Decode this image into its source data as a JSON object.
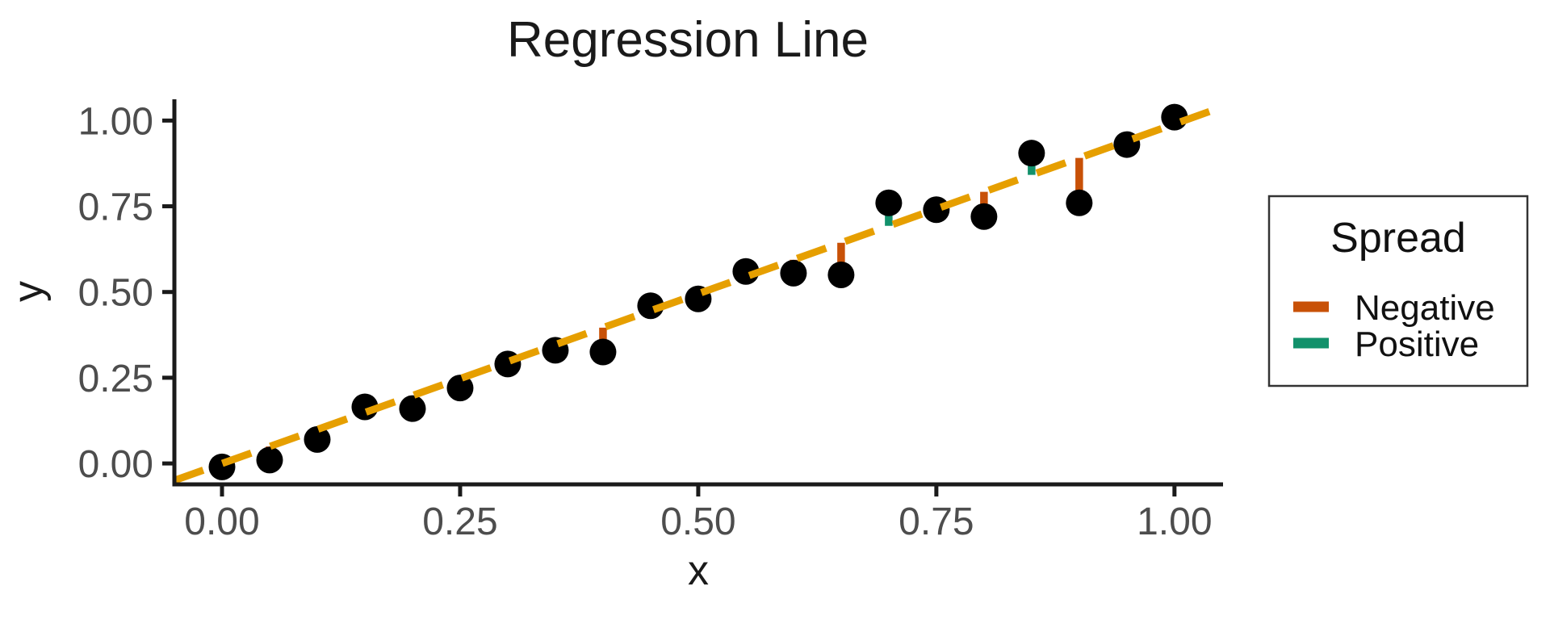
{
  "title": "Regression Line",
  "legend": {
    "title": "Spread",
    "items": [
      {
        "label": "Negative",
        "color": "#C85107"
      },
      {
        "label": "Positive",
        "color": "#12916B"
      }
    ]
  },
  "chart_data": {
    "type": "scatter",
    "title": "Regression Line",
    "xlabel": "x",
    "ylabel": "y",
    "xlim": [
      -0.05,
      1.051
    ],
    "ylim": [
      -0.061,
      1.062
    ],
    "grid": "off",
    "legend_position": "right",
    "x_axis": {
      "ticks": [
        0,
        0.25,
        0.5,
        0.75,
        1.0
      ],
      "labels": [
        "0.00",
        "0.25",
        "0.50",
        "0.75",
        "1.00"
      ]
    },
    "y_axis": {
      "ticks": [
        0,
        0.25,
        0.5,
        0.75,
        1.0
      ],
      "labels": [
        "0.00",
        "0.25",
        "0.50",
        "0.75",
        "1.00"
      ]
    },
    "points": [
      {
        "x": 0.0,
        "y": -0.01
      },
      {
        "x": 0.05,
        "y": 0.01
      },
      {
        "x": 0.1,
        "y": 0.07
      },
      {
        "x": 0.15,
        "y": 0.165
      },
      {
        "x": 0.2,
        "y": 0.16
      },
      {
        "x": 0.25,
        "y": 0.22
      },
      {
        "x": 0.3,
        "y": 0.29
      },
      {
        "x": 0.35,
        "y": 0.33
      },
      {
        "x": 0.4,
        "y": 0.325
      },
      {
        "x": 0.45,
        "y": 0.46
      },
      {
        "x": 0.5,
        "y": 0.48
      },
      {
        "x": 0.55,
        "y": 0.56
      },
      {
        "x": 0.6,
        "y": 0.555
      },
      {
        "x": 0.65,
        "y": 0.55
      },
      {
        "x": 0.7,
        "y": 0.76
      },
      {
        "x": 0.75,
        "y": 0.74
      },
      {
        "x": 0.8,
        "y": 0.72
      },
      {
        "x": 0.85,
        "y": 0.905
      },
      {
        "x": 0.9,
        "y": 0.76
      },
      {
        "x": 0.95,
        "y": 0.93
      },
      {
        "x": 1.0,
        "y": 1.01
      }
    ],
    "regression_line": {
      "slope": 0.99,
      "intercept": 0.0,
      "style": "dashed",
      "x_start": -0.05,
      "x_end": 1.051
    },
    "residual_rule": "segment drawn from each point to the regression line; colored by sign of spread",
    "colors": {
      "points": "#000000",
      "line": "#E69F00",
      "negative": "#C85107",
      "positive": "#12916B",
      "axis": "#1a1a1a",
      "tick_text": "#4d4d4d"
    }
  }
}
